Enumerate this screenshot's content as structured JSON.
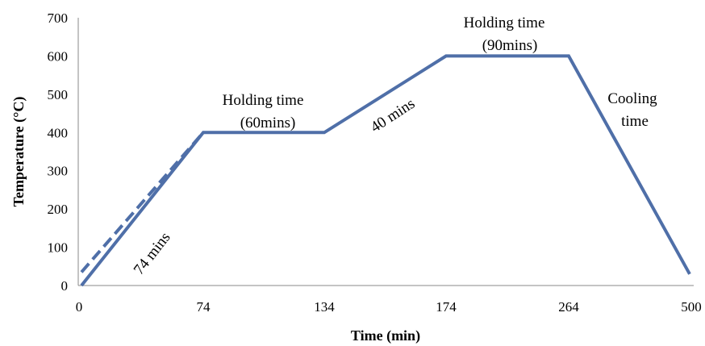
{
  "chart_data": {
    "type": "line",
    "xlabel": "Time (min)",
    "ylabel": "Temperature  (°C)",
    "x_categories": [
      "0",
      "74",
      "134",
      "174",
      "264",
      "500"
    ],
    "ylim": [
      0,
      700
    ],
    "yticks": [
      0,
      100,
      200,
      300,
      400,
      500,
      600,
      700
    ],
    "grid": false,
    "color": "#4F6FA8",
    "series": [
      {
        "style": "solid",
        "points": [
          {
            "x": "0",
            "y": 0
          },
          {
            "x": "74",
            "y": 400
          },
          {
            "x": "134",
            "y": 400
          },
          {
            "x": "174",
            "y": 600
          },
          {
            "x": "264",
            "y": 600
          },
          {
            "x": "500",
            "y": 30
          }
        ]
      },
      {
        "style": "dashed",
        "points": [
          {
            "x": "0",
            "y": 35
          },
          {
            "x": "74",
            "y": 400
          }
        ]
      }
    ],
    "annotations": [
      {
        "text": "74 mins"
      },
      {
        "text": "Holding time"
      },
      {
        "text": "(60mins)"
      },
      {
        "text": "40 mins"
      },
      {
        "text": "Holding time"
      },
      {
        "text": "(90mins)"
      },
      {
        "text": "Cooling"
      },
      {
        "text": "time"
      }
    ]
  }
}
